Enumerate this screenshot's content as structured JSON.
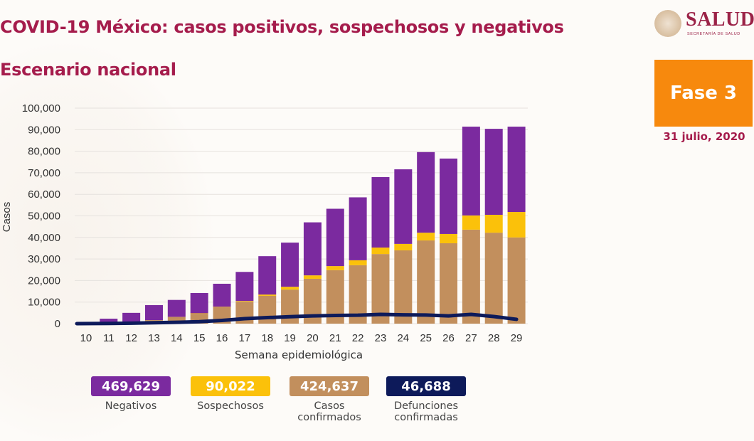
{
  "header": {
    "title": "COVID-19 México: casos positivos, sospechosos y negativos",
    "subtitle": "Escenario nacional"
  },
  "logo": {
    "name": "SALUD",
    "subtitle": "SECRETARÍA DE SALUD",
    "icon": "national-seal-icon"
  },
  "phase_badge": {
    "label": "Fase 3",
    "color": "#f7890d"
  },
  "date": "31 julio, 2020",
  "legend": [
    {
      "value": "469,629",
      "label": "Negativos",
      "color": "#7b2a9f"
    },
    {
      "value": "90,022",
      "label": "Sospechosos",
      "color": "#fbc10a"
    },
    {
      "value": "424,637",
      "label": "Casos\nconfirmados",
      "color": "#c28f5d"
    },
    {
      "value": "46,688",
      "label": "Defunciones\nconfirmadas",
      "color": "#0d1a5a"
    }
  ],
  "chart_data": {
    "type": "bar",
    "stacked": true,
    "title": "",
    "xlabel": "Semana epidemiológica",
    "ylabel": "Casos",
    "ylim": [
      0,
      100000
    ],
    "yticks": [
      0,
      10000,
      20000,
      30000,
      40000,
      50000,
      60000,
      70000,
      80000,
      90000,
      100000
    ],
    "ytick_labels": [
      "0",
      "10,000",
      "20,000",
      "30,000",
      "40,000",
      "50,000",
      "60,000",
      "70,000",
      "80,000",
      "90,000",
      "100,000"
    ],
    "grid": true,
    "categories": [
      "10",
      "11",
      "12",
      "13",
      "14",
      "15",
      "16",
      "17",
      "18",
      "19",
      "20",
      "21",
      "22",
      "23",
      "24",
      "25",
      "26",
      "27",
      "28",
      "29"
    ],
    "series": [
      {
        "name": "Casos confirmados",
        "kind": "bar",
        "color": "#c28f5d",
        "values": [
          100,
          300,
          700,
          1500,
          3000,
          4600,
          7600,
          10200,
          12900,
          15800,
          20800,
          24800,
          27100,
          32300,
          34000,
          38600,
          37300,
          43600,
          42200,
          40000
        ]
      },
      {
        "name": "Sospechosos",
        "kind": "bar",
        "color": "#fbc10a",
        "values": [
          0,
          0,
          0,
          100,
          100,
          200,
          200,
          300,
          600,
          1300,
          1600,
          1900,
          2300,
          3000,
          3000,
          3600,
          4300,
          6600,
          8300,
          11800
        ]
      },
      {
        "name": "Negativos",
        "kind": "bar",
        "color": "#7b2a9f",
        "values": [
          300,
          2000,
          4300,
          7000,
          7900,
          9400,
          10700,
          13500,
          17800,
          20500,
          24600,
          26600,
          29200,
          32700,
          34600,
          37400,
          35000,
          41200,
          39900,
          39600
        ]
      },
      {
        "name": "Defunciones confirmadas",
        "kind": "line",
        "color": "#0d1a5a",
        "values": [
          0,
          100,
          200,
          400,
          600,
          900,
          1500,
          2300,
          2800,
          3200,
          3600,
          3800,
          3900,
          4300,
          4100,
          4000,
          3600,
          4300,
          3300,
          2000
        ]
      }
    ]
  }
}
